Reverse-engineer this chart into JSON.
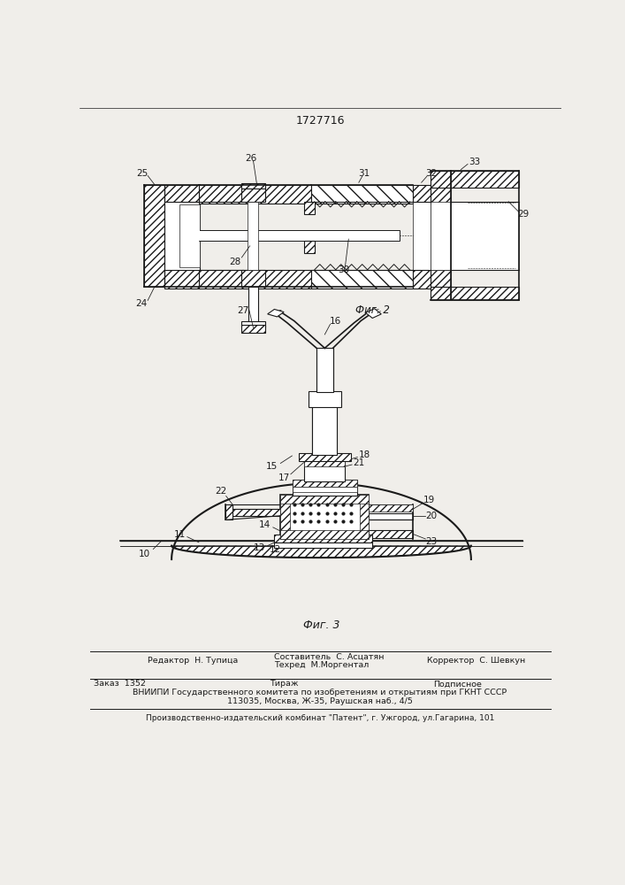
{
  "patent_number": "1727716",
  "fig2_label": "Фиг. 2",
  "fig3_label": "Фиг. 3",
  "footer_line1_left": "Редактор  Н. Тупица",
  "footer_line1_mid": "Составитель  С. Асцатян",
  "footer_line1_right": "Корректор  С. Шевкун",
  "footer_line2_mid": "Техред  М.Моргентал",
  "footer_order": "Заказ  1352",
  "footer_tirazh": "Тираж",
  "footer_podpisnoe": "Подписное",
  "footer_vniiipi": "ВНИИПИ Государственного комитета по изобретениям и открытиям при ГКНТ СССР",
  "footer_address": "113035, Москва, Ж-35, Раушская наб., 4/5",
  "footer_publisher": "Производственно-издательский комбинат \"Патент\", г. Ужгород, ул.Гагарина, 101",
  "bg_color": "#f0eeea",
  "line_color": "#1a1a1a"
}
